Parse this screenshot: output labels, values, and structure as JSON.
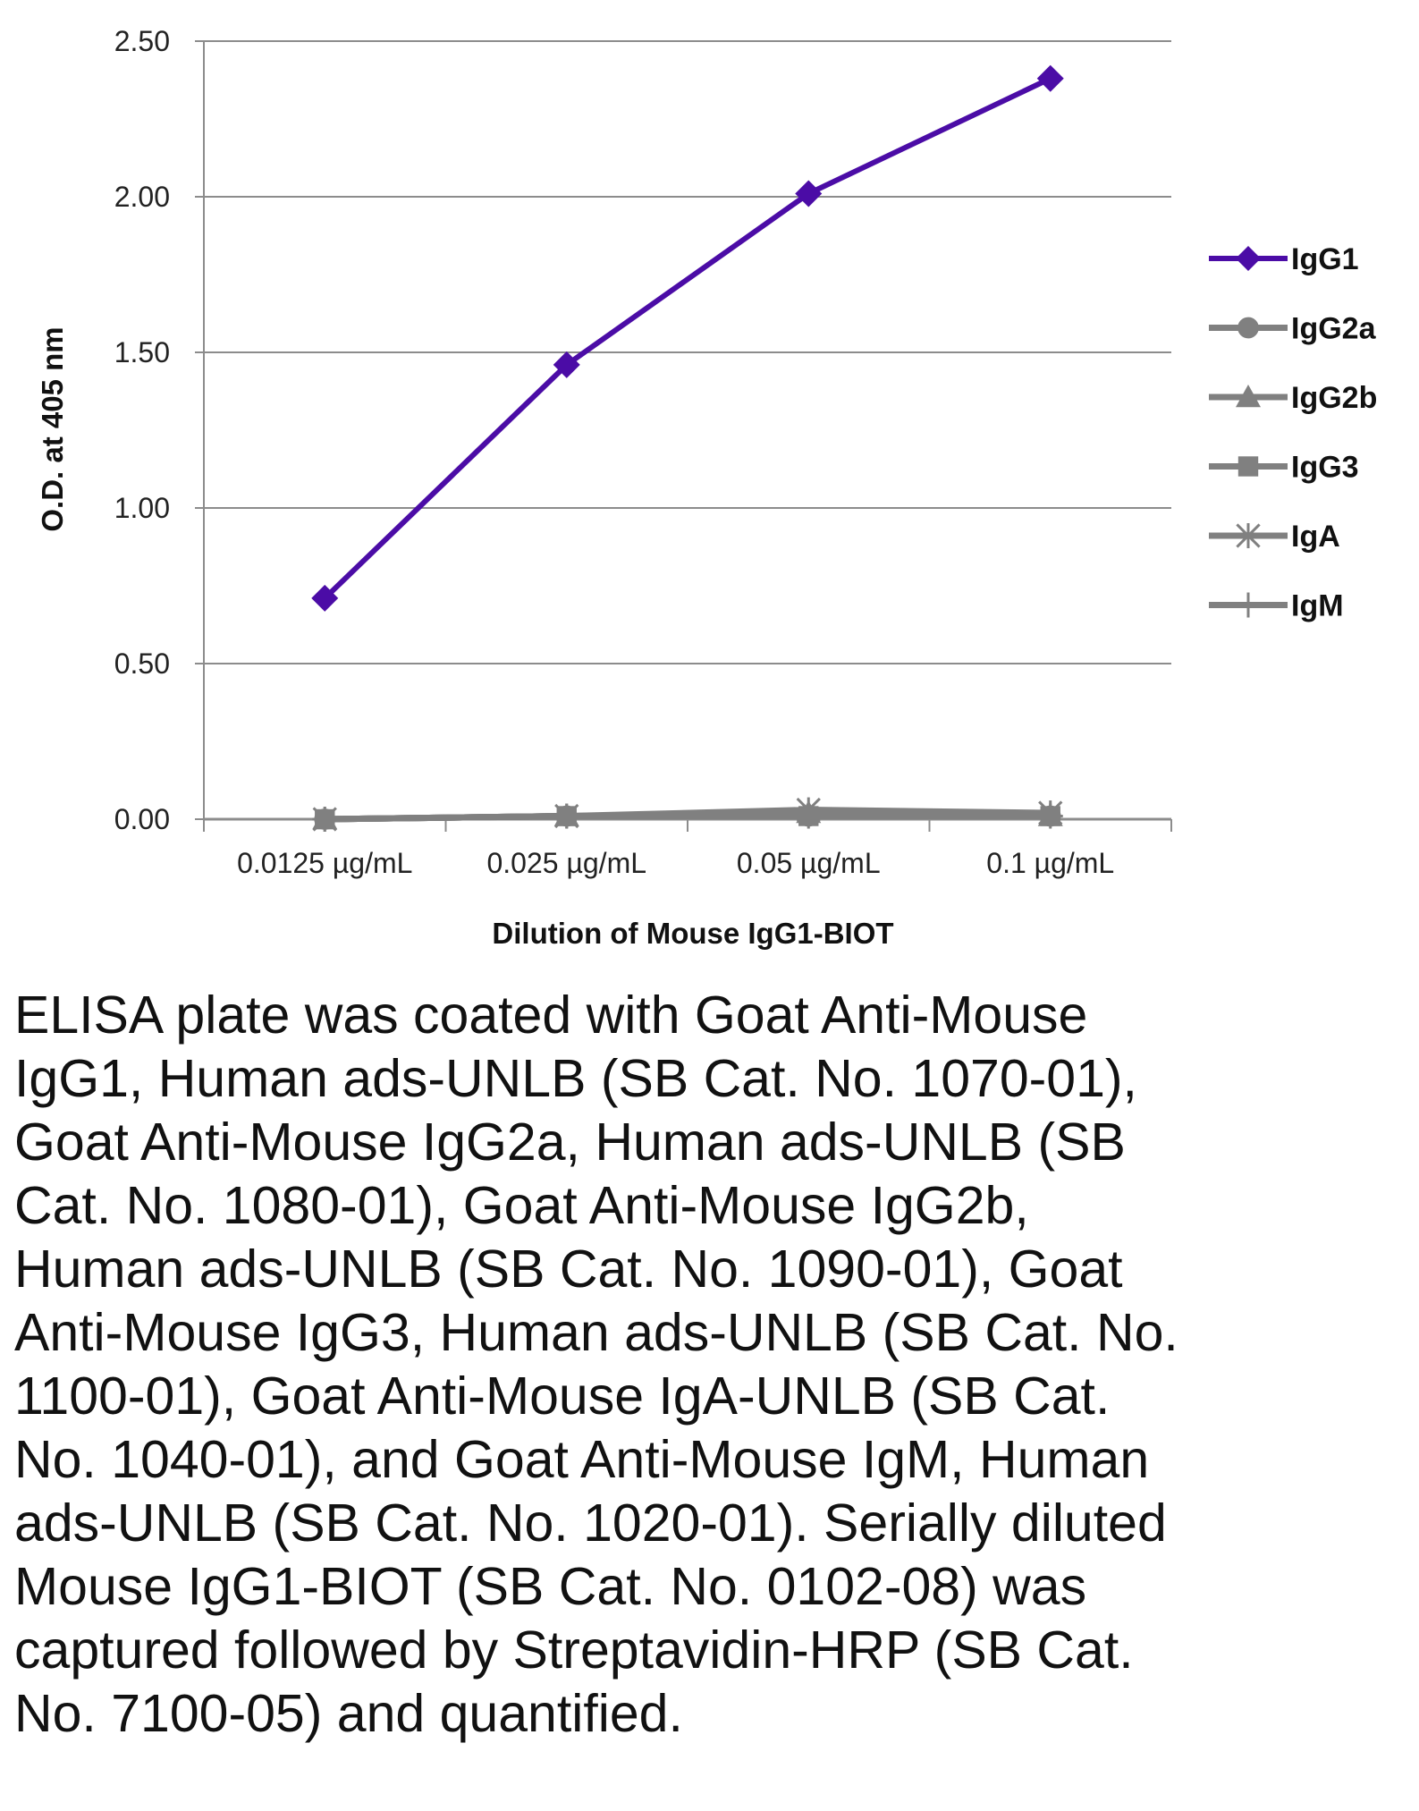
{
  "chart_data": {
    "type": "line",
    "title": "",
    "xlabel": "Dilution of Mouse IgG1-BIOT",
    "ylabel": "O.D. at 405 nm",
    "categories": [
      "0.0125 µg/mL",
      "0.025 µg/mL",
      "0.05 µg/mL",
      "0.1 µg/mL"
    ],
    "ylim": [
      0,
      2.5
    ],
    "yticks": [
      "0.00",
      "0.50",
      "1.00",
      "1.50",
      "2.00",
      "2.50"
    ],
    "grid": "horizontal",
    "legend_position": "right",
    "series": [
      {
        "name": "IgG1",
        "marker": "diamond",
        "color": "#4B0CA6",
        "values": [
          0.71,
          1.46,
          2.01,
          2.38
        ]
      },
      {
        "name": "IgG2a",
        "marker": "circle",
        "color": "#808080",
        "values": [
          0.0,
          0.01,
          0.01,
          0.01
        ]
      },
      {
        "name": "IgG2b",
        "marker": "triangle",
        "color": "#808080",
        "values": [
          0.0,
          0.01,
          0.02,
          0.01
        ]
      },
      {
        "name": "IgG3",
        "marker": "square",
        "color": "#808080",
        "values": [
          0.0,
          0.01,
          0.01,
          0.01
        ]
      },
      {
        "name": "IgA",
        "marker": "star",
        "color": "#808080",
        "values": [
          0.0,
          0.01,
          0.03,
          0.02
        ]
      },
      {
        "name": "IgM",
        "marker": "plus",
        "color": "#808080",
        "values": [
          0.0,
          0.01,
          0.01,
          0.01
        ]
      }
    ]
  },
  "caption": "ELISA plate was coated with Goat Anti-Mouse IgG1, Human ads-UNLB (SB Cat. No. 1070-01), Goat Anti-Mouse IgG2a, Human ads-UNLB (SB Cat. No. 1080-01), Goat Anti-Mouse IgG2b, Human ads-UNLB (SB Cat. No. 1090-01), Goat Anti-Mouse IgG3, Human ads-UNLB (SB Cat. No. 1100-01), Goat Anti-Mouse IgA-UNLB (SB Cat. No. 1040-01), and Goat Anti-Mouse IgM, Human ads-UNLB (SB Cat. No. 1020-01).  Serially diluted Mouse IgG1-BIOT (SB Cat. No. 0102-08) was captured followed by Streptavidin-HRP (SB Cat. No. 7100-05) and quantified."
}
